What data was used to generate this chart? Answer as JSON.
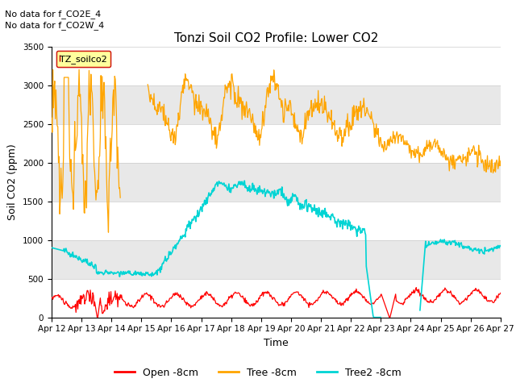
{
  "title": "Tonzi Soil CO2 Profile: Lower CO2",
  "ylabel": "Soil CO2 (ppm)",
  "xlabel": "Time",
  "annotation1": "No data for f_CO2E_4",
  "annotation2": "No data for f_CO2W_4",
  "legend_label": "TZ_soilco2",
  "ylim": [
    0,
    3500
  ],
  "yticks": [
    0,
    500,
    1000,
    1500,
    2000,
    2500,
    3000,
    3500
  ],
  "xticklabels": [
    "Apr 12",
    "Apr 13",
    "Apr 14",
    "Apr 15",
    "Apr 16",
    "Apr 17",
    "Apr 18",
    "Apr 19",
    "Apr 20",
    "Apr 21",
    "Apr 22",
    "Apr 23",
    "Apr 24",
    "Apr 25",
    "Apr 26",
    "Apr 27"
  ],
  "colors": {
    "open": "#ff0000",
    "tree": "#ffa500",
    "tree2": "#00d4d4",
    "band_gray": "#e8e8e8"
  },
  "legend_labels": [
    "Open -8cm",
    "Tree -8cm",
    "Tree2 -8cm"
  ],
  "title_fontsize": 11,
  "axis_fontsize": 9,
  "tick_fontsize": 7.5,
  "annot_fontsize": 8
}
